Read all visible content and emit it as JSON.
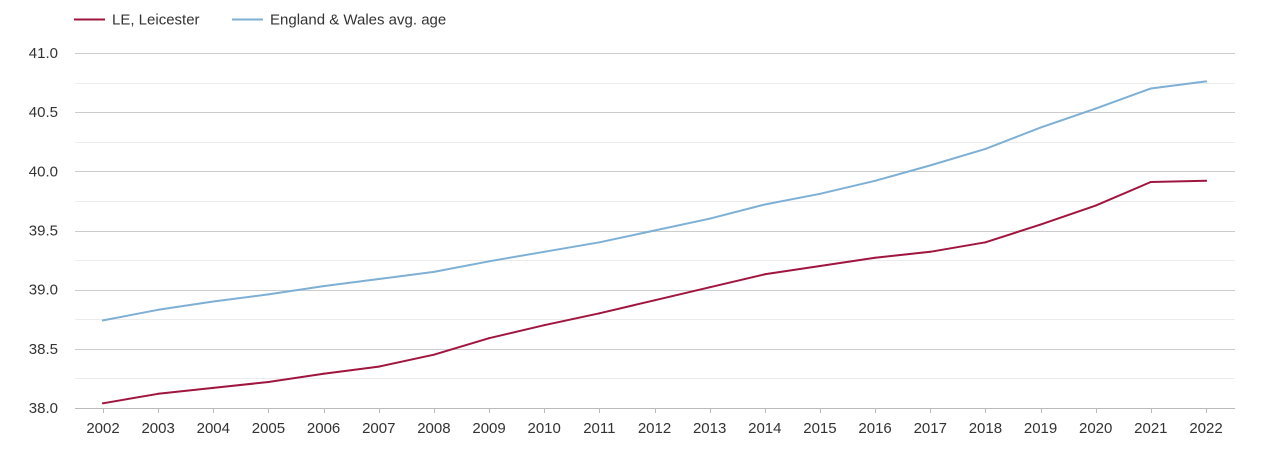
{
  "chart_data": {
    "type": "line",
    "title": "",
    "xlabel": "",
    "ylabel": "",
    "x": [
      "2002",
      "2003",
      "2004",
      "2005",
      "2006",
      "2007",
      "2008",
      "2009",
      "2010",
      "2011",
      "2012",
      "2013",
      "2014",
      "2015",
      "2016",
      "2017",
      "2018",
      "2019",
      "2020",
      "2021",
      "2022"
    ],
    "y_ticks": [
      "38.0",
      "38.5",
      "39.0",
      "39.5",
      "40.0",
      "40.5",
      "41.0"
    ],
    "ylim": [
      38.0,
      41.0
    ],
    "minor_grid_step": 0.25,
    "grid": true,
    "legend_position": "top-left",
    "series": [
      {
        "name": "LE, Leicester",
        "color": "#a0153e",
        "values": [
          38.04,
          38.12,
          38.17,
          38.22,
          38.29,
          38.35,
          38.45,
          38.59,
          38.7,
          38.8,
          38.91,
          39.02,
          39.13,
          39.2,
          39.27,
          39.32,
          39.4,
          39.55,
          39.71,
          39.91,
          39.92
        ]
      },
      {
        "name": "England & Wales avg. age",
        "color": "#7eb0d5",
        "values": [
          38.74,
          38.83,
          38.9,
          38.96,
          39.03,
          39.09,
          39.15,
          39.24,
          39.32,
          39.4,
          39.5,
          39.6,
          39.72,
          39.81,
          39.92,
          40.05,
          40.19,
          40.37,
          40.53,
          40.7,
          40.76
        ]
      }
    ]
  }
}
